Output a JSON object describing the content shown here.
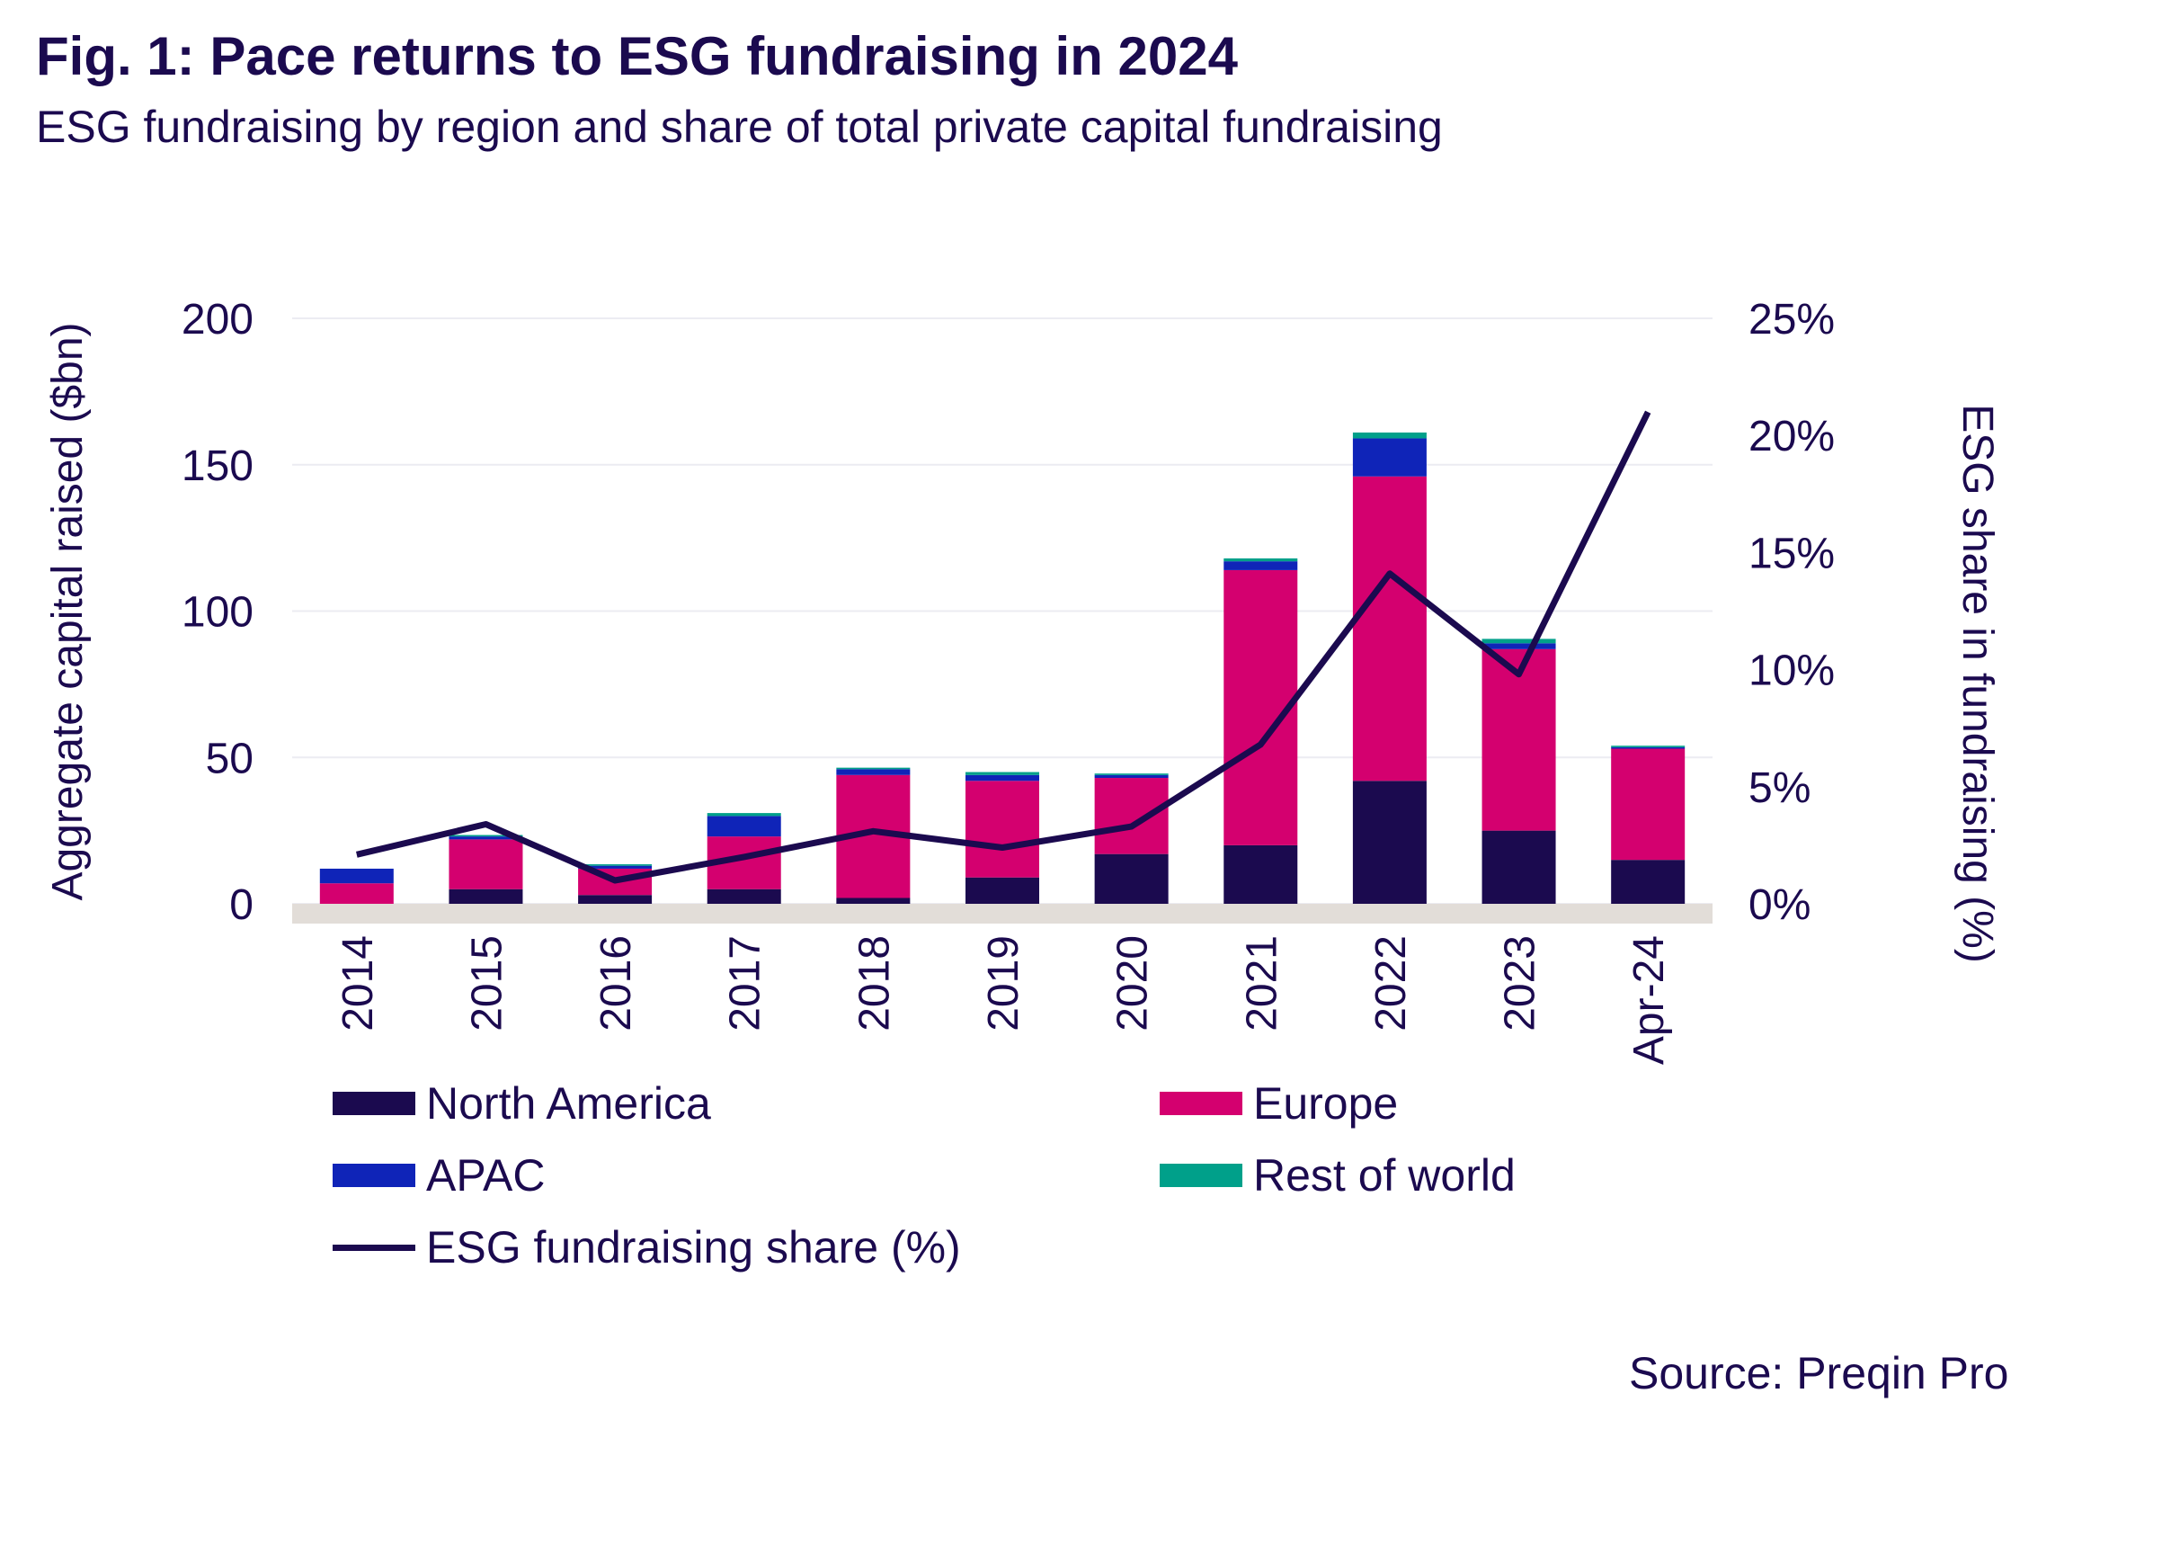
{
  "title": "Fig. 1:  Pace returns to ESG fundraising in 2024",
  "subtitle": "ESG fundraising by region and share of total private capital fundraising",
  "source": "Source: Preqin Pro",
  "chart_data": {
    "type": "bar",
    "stacked": true,
    "categories": [
      "2014",
      "2015",
      "2016",
      "2017",
      "2018",
      "2019",
      "2020",
      "2021",
      "2022",
      "2023",
      "Apr-24"
    ],
    "ylabel": "Aggregate capital raised ($bn)",
    "y2label": "ESG share in fundraising (%)",
    "ylim": [
      0,
      200
    ],
    "y2lim": [
      0,
      25
    ],
    "yticks": [
      "0",
      "50",
      "100",
      "150",
      "200"
    ],
    "y2ticks": [
      "0%",
      "5%",
      "10%",
      "15%",
      "20%",
      "25%"
    ],
    "grid": true,
    "legend_position": "bottom",
    "series": [
      {
        "name": "North America",
        "color": "#1b0a4f",
        "values": [
          0,
          5,
          3,
          5,
          2,
          9,
          17,
          20,
          42,
          25,
          15
        ]
      },
      {
        "name": "Europe",
        "color": "#d4006f",
        "values": [
          7,
          17,
          9,
          18,
          42,
          33,
          26,
          94,
          104,
          62,
          38
        ]
      },
      {
        "name": "APAC",
        "color": "#0f24b8",
        "values": [
          5,
          1,
          1,
          7,
          2,
          2,
          1,
          3,
          13,
          2,
          0.5
        ]
      },
      {
        "name": "Rest of world",
        "color": "#00a08a",
        "values": [
          0,
          0.5,
          0.5,
          1,
          0.5,
          1,
          0.5,
          1,
          2,
          1.5,
          0.5
        ]
      }
    ],
    "line_series": {
      "name": "ESG fundraising share (%)",
      "color": "#1b0a4f",
      "axis": "y2",
      "values": [
        2.1,
        3.4,
        1.0,
        2.0,
        3.1,
        2.4,
        3.3,
        6.8,
        14.1,
        9.8,
        21.0
      ]
    }
  }
}
